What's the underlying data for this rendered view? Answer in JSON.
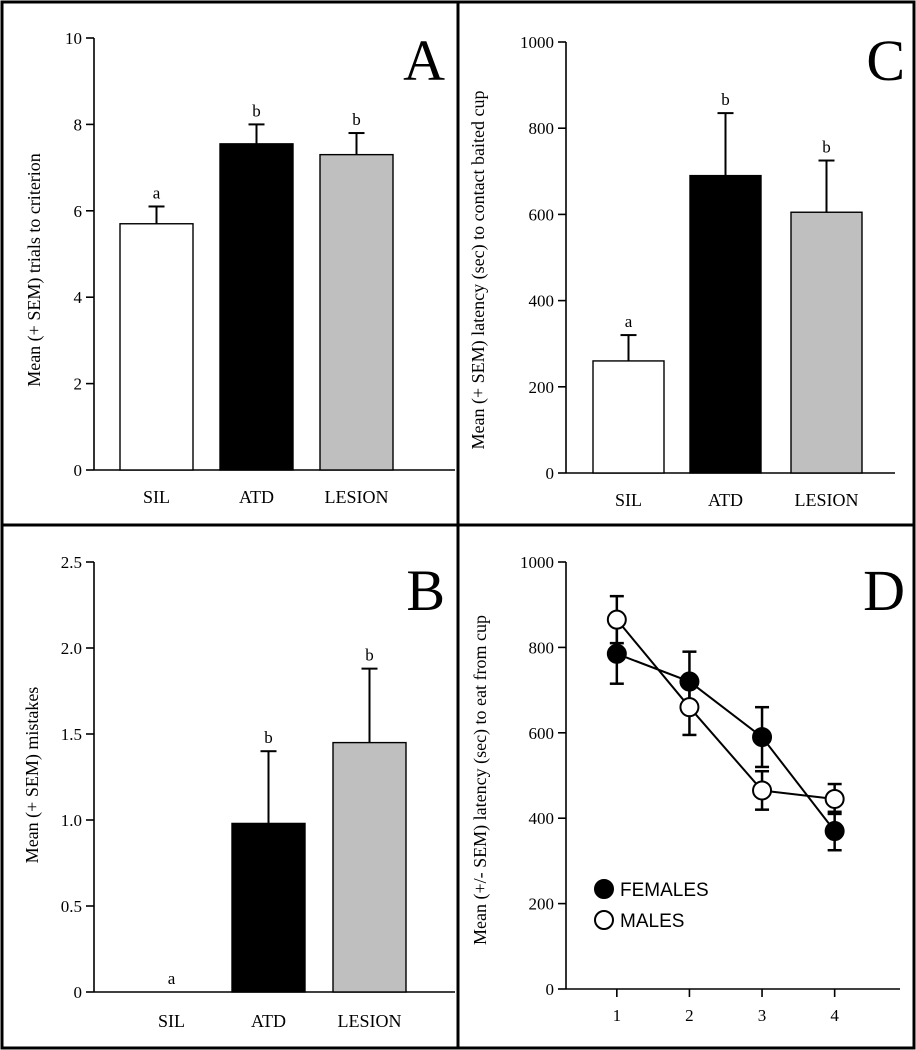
{
  "colors": {
    "sil": "#ffffff",
    "atd": "#000000",
    "lesion": "#bfbfbf",
    "females": "#000000",
    "males": "#ffffff"
  },
  "chart_data": [
    {
      "panel": "A",
      "type": "bar",
      "ylabel": "Mean (+ SEM) trials to criterion",
      "categories": [
        "SIL",
        "ATD",
        "LESION"
      ],
      "values": [
        5.7,
        7.55,
        7.3
      ],
      "errors": [
        0.4,
        0.45,
        0.5
      ],
      "significance": [
        "a",
        "b",
        "b"
      ],
      "ylim": [
        0,
        10
      ],
      "yticks": [
        0,
        2,
        4,
        6,
        8,
        10
      ],
      "ytick_labels": [
        "0",
        "2",
        "4",
        "6",
        "8",
        "10"
      ]
    },
    {
      "panel": "B",
      "type": "bar",
      "ylabel": "Mean (+ SEM) mistakes",
      "categories": [
        "SIL",
        "ATD",
        "LESION"
      ],
      "values": [
        0,
        0.98,
        1.45
      ],
      "errors": [
        0,
        0.42,
        0.43
      ],
      "significance": [
        "a",
        "b",
        "b"
      ],
      "ylim": [
        0,
        2.5
      ],
      "yticks": [
        0,
        0.5,
        1.0,
        1.5,
        2.0,
        2.5
      ],
      "ytick_labels": [
        "0",
        "0.5",
        "1.0",
        "1.5",
        "2.0",
        "2.5"
      ]
    },
    {
      "panel": "C",
      "type": "bar",
      "ylabel": "Mean (+ SEM) latency (sec)  to contact baited cup",
      "categories": [
        "SIL",
        "ATD",
        "LESION"
      ],
      "values": [
        260,
        690,
        605
      ],
      "errors": [
        60,
        145,
        120
      ],
      "significance": [
        "a",
        "b",
        "b"
      ],
      "ylim": [
        0,
        1000
      ],
      "yticks": [
        0,
        200,
        400,
        600,
        800,
        1000
      ],
      "ytick_labels": [
        "0",
        "200",
        "400",
        "600",
        "800",
        "1000"
      ]
    },
    {
      "panel": "D",
      "type": "line",
      "ylabel": "Mean (+/- SEM) latency (sec) to eat from cup",
      "x": [
        1,
        2,
        3,
        4
      ],
      "xtick_labels": [
        "1",
        "2",
        "3",
        "4"
      ],
      "xlim": [
        0.3,
        4.9
      ],
      "ylim": [
        0,
        1000
      ],
      "yticks": [
        0,
        200,
        400,
        600,
        800,
        1000
      ],
      "ytick_labels": [
        "0",
        "200",
        "400",
        "600",
        "800",
        "1000"
      ],
      "series": [
        {
          "name": "FEMALES",
          "marker": "filled",
          "values": [
            785,
            720,
            590,
            370
          ],
          "errors": [
            70,
            70,
            70,
            45
          ]
        },
        {
          "name": "MALES",
          "marker": "open",
          "values": [
            865,
            660,
            465,
            445
          ],
          "errors": [
            55,
            65,
            45,
            35
          ]
        }
      ],
      "legend": "bottom-left"
    }
  ]
}
